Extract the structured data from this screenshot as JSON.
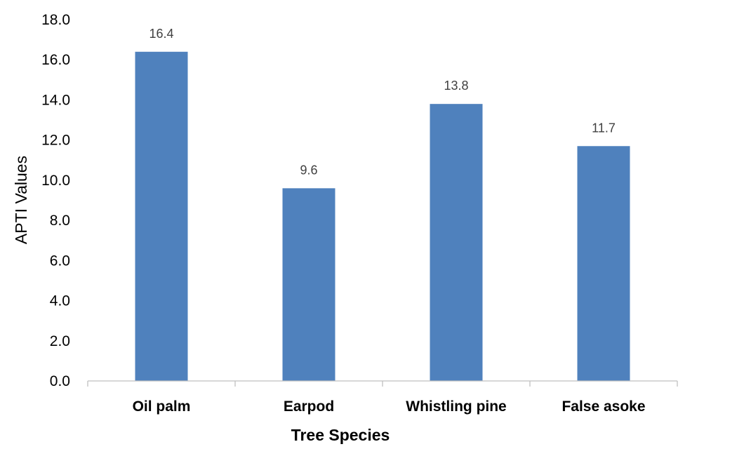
{
  "chart_data": {
    "type": "bar",
    "categories": [
      "Oil palm",
      "Earpod",
      "Whistling pine",
      "False asoke"
    ],
    "values": [
      16.4,
      9.6,
      13.8,
      11.7
    ],
    "data_labels": [
      "16.4",
      "9.6",
      "13.8",
      "11.7"
    ],
    "xlabel": "Tree Species",
    "ylabel": "APTI Values",
    "ylim": [
      0,
      18
    ],
    "yticks": [
      "0.0",
      "2.0",
      "4.0",
      "6.0",
      "8.0",
      "10.0",
      "12.0",
      "14.0",
      "16.0",
      "18.0"
    ],
    "grid": false,
    "legend": "none",
    "bar_color": "#4F81BD",
    "axis_color": "#BFBFBF"
  }
}
